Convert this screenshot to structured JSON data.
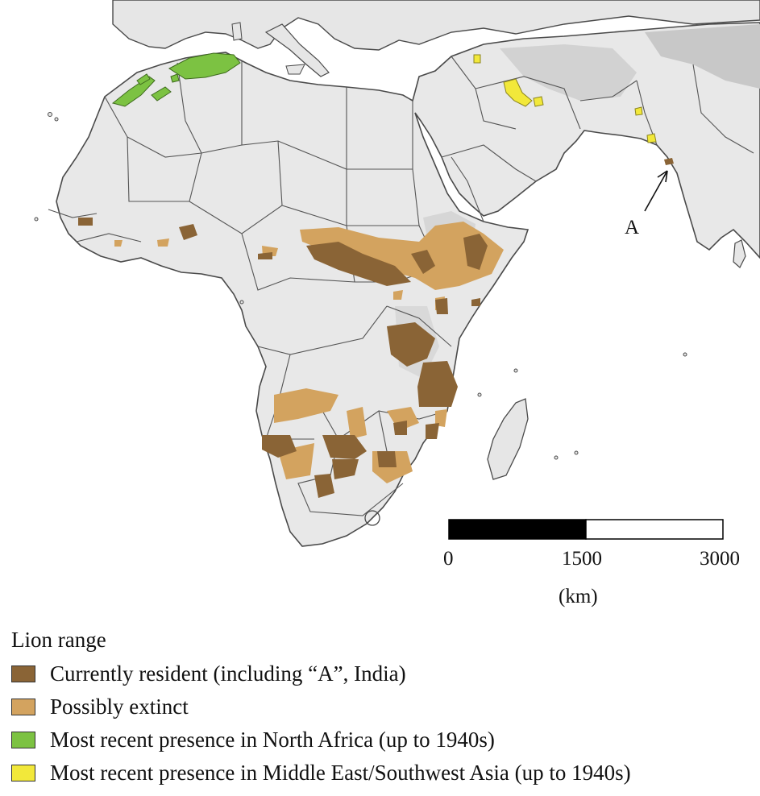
{
  "map": {
    "marker_label": "A",
    "colors": {
      "sea": "#ffffff",
      "land": "#e6e6e6",
      "land_light": "#eeeeee",
      "highland": "#cfcfcf",
      "border": "#4a4a4a",
      "currently_resident": "#8a6436",
      "possibly_extinct": "#d3a35f",
      "north_africa": "#7cc242",
      "middle_east": "#f2e83a"
    }
  },
  "scale_bar": {
    "ticks": [
      "0",
      "1500",
      "3000"
    ],
    "unit": "(km)"
  },
  "legend": {
    "title": "Lion range",
    "items": [
      {
        "label": "Currently resident (including “A”, India)",
        "color": "#8a6436"
      },
      {
        "label": "Possibly extinct",
        "color": "#d3a35f"
      },
      {
        "label": "Most recent presence in North Africa (up to 1940s)",
        "color": "#7cc242"
      },
      {
        "label": "Most recent presence in Middle East/Southwest Asia (up to 1940s)",
        "color": "#f2e83a"
      }
    ]
  }
}
